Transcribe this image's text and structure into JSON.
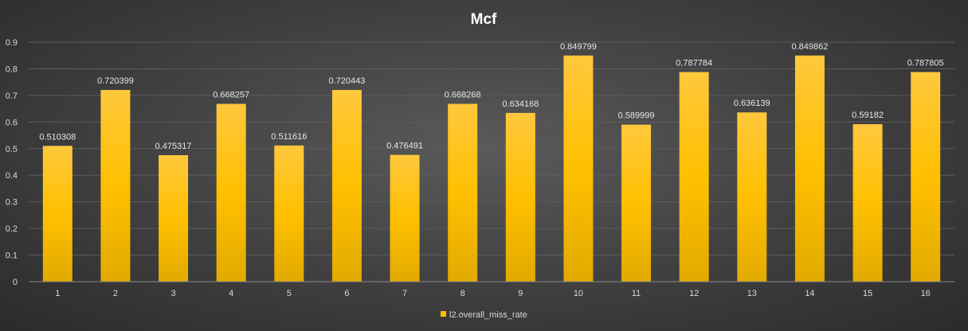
{
  "chart_data": {
    "type": "bar",
    "title": "Mcf",
    "xlabel": "",
    "ylabel": "",
    "categories": [
      "1",
      "2",
      "3",
      "4",
      "5",
      "6",
      "7",
      "8",
      "9",
      "10",
      "11",
      "12",
      "13",
      "14",
      "15",
      "16"
    ],
    "series": [
      {
        "name": "l2.overall_miss_rate",
        "values": [
          0.510308,
          0.720399,
          0.475317,
          0.668257,
          0.511616,
          0.720443,
          0.476491,
          0.668268,
          0.634168,
          0.849799,
          0.589999,
          0.787784,
          0.636139,
          0.849862,
          0.59182,
          0.787805
        ],
        "labels": [
          "0.510308",
          "0.720399",
          "0.475317",
          "0.668257",
          "0.511616",
          "0.720443",
          "0.476491",
          "0.668268",
          "0.634168",
          "0.849799",
          "0.589999",
          "0.787784",
          "0.636139",
          "0.849862",
          "0.59182",
          "0.787805"
        ]
      }
    ],
    "ylim": [
      0,
      0.9
    ],
    "yticks": [
      "0",
      "0.1",
      "0.2",
      "0.3",
      "0.4",
      "0.5",
      "0.6",
      "0.7",
      "0.8",
      "0.9"
    ],
    "grid": true,
    "legend_position": "bottom",
    "colors": {
      "bar_top": "#ffc83d",
      "bar_mid": "#ffc000",
      "bar_bottom": "#e2aa00",
      "background": "#404040"
    }
  }
}
